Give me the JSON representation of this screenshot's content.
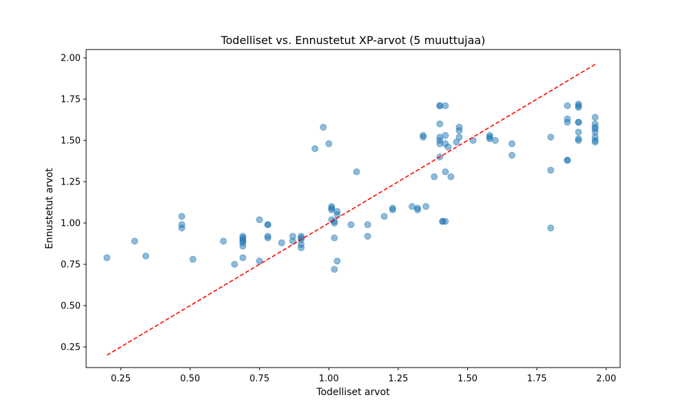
{
  "chart_data": {
    "type": "scatter",
    "title": "Todelliset vs. Ennustetut XP-arvot (5 muuttujaa)",
    "xlabel": "Todelliset arvot",
    "ylabel": "Ennustetut arvot",
    "xlim": [
      0.125,
      2.05
    ],
    "ylim": [
      0.125,
      2.05
    ],
    "x_ticks": [
      "0.25",
      "0.50",
      "0.75",
      "1.00",
      "1.25",
      "1.50",
      "1.75",
      "2.00"
    ],
    "y_ticks": [
      "0.25",
      "0.50",
      "0.75",
      "1.00",
      "1.25",
      "1.50",
      "1.75",
      "2.00"
    ],
    "grid": false,
    "colors": {
      "points": "#1f77b4",
      "reference_line": "#ff0000"
    },
    "reference_line": {
      "style": "dashed",
      "from": [
        0.2,
        0.2
      ],
      "to": [
        1.96,
        1.96
      ]
    },
    "points": [
      [
        0.2,
        0.79
      ],
      [
        0.3,
        0.89
      ],
      [
        0.34,
        0.8
      ],
      [
        0.47,
        1.04
      ],
      [
        0.47,
        0.99
      ],
      [
        0.47,
        0.97
      ],
      [
        0.51,
        0.78
      ],
      [
        0.62,
        0.89
      ],
      [
        0.66,
        0.75
      ],
      [
        0.69,
        0.92
      ],
      [
        0.69,
        0.91
      ],
      [
        0.69,
        0.9
      ],
      [
        0.69,
        0.89
      ],
      [
        0.69,
        0.88
      ],
      [
        0.69,
        0.86
      ],
      [
        0.69,
        0.79
      ],
      [
        0.75,
        1.02
      ],
      [
        0.75,
        0.77
      ],
      [
        0.78,
        0.99
      ],
      [
        0.78,
        0.99
      ],
      [
        0.78,
        0.92
      ],
      [
        0.78,
        0.91
      ],
      [
        0.83,
        0.88
      ],
      [
        0.87,
        0.92
      ],
      [
        0.87,
        0.89
      ],
      [
        0.9,
        0.92
      ],
      [
        0.9,
        0.91
      ],
      [
        0.9,
        0.9
      ],
      [
        0.9,
        0.87
      ],
      [
        0.9,
        0.85
      ],
      [
        0.95,
        1.45
      ],
      [
        0.98,
        1.58
      ],
      [
        1.0,
        1.48
      ],
      [
        1.01,
        1.1
      ],
      [
        1.01,
        1.09
      ],
      [
        1.01,
        1.08
      ],
      [
        1.01,
        1.02
      ],
      [
        1.02,
        1.01
      ],
      [
        1.02,
        1.0
      ],
      [
        1.02,
        0.91
      ],
      [
        1.02,
        0.72
      ],
      [
        1.03,
        1.07
      ],
      [
        1.03,
        1.05
      ],
      [
        1.03,
        0.77
      ],
      [
        1.08,
        0.99
      ],
      [
        1.1,
        1.31
      ],
      [
        1.14,
        0.99
      ],
      [
        1.14,
        0.92
      ],
      [
        1.2,
        1.04
      ],
      [
        1.23,
        1.09
      ],
      [
        1.23,
        1.08
      ],
      [
        1.3,
        1.1
      ],
      [
        1.32,
        1.09
      ],
      [
        1.32,
        1.08
      ],
      [
        1.34,
        1.53
      ],
      [
        1.34,
        1.52
      ],
      [
        1.35,
        1.1
      ],
      [
        1.38,
        1.28
      ],
      [
        1.4,
        1.71
      ],
      [
        1.4,
        1.71
      ],
      [
        1.4,
        1.6
      ],
      [
        1.4,
        1.52
      ],
      [
        1.4,
        1.5
      ],
      [
        1.4,
        1.48
      ],
      [
        1.4,
        1.4
      ],
      [
        1.41,
        1.01
      ],
      [
        1.41,
        1.01
      ],
      [
        1.42,
        1.71
      ],
      [
        1.42,
        1.53
      ],
      [
        1.42,
        1.48
      ],
      [
        1.42,
        1.31
      ],
      [
        1.42,
        1.01
      ],
      [
        1.43,
        1.46
      ],
      [
        1.44,
        1.28
      ],
      [
        1.46,
        1.49
      ],
      [
        1.47,
        1.58
      ],
      [
        1.47,
        1.56
      ],
      [
        1.47,
        1.52
      ],
      [
        1.52,
        1.5
      ],
      [
        1.58,
        1.53
      ],
      [
        1.58,
        1.52
      ],
      [
        1.58,
        1.51
      ],
      [
        1.6,
        1.5
      ],
      [
        1.66,
        1.48
      ],
      [
        1.66,
        1.41
      ],
      [
        1.8,
        1.52
      ],
      [
        1.8,
        1.32
      ],
      [
        1.8,
        0.97
      ],
      [
        1.86,
        1.71
      ],
      [
        1.86,
        1.63
      ],
      [
        1.86,
        1.61
      ],
      [
        1.86,
        1.38
      ],
      [
        1.86,
        1.38
      ],
      [
        1.9,
        1.72
      ],
      [
        1.9,
        1.71
      ],
      [
        1.9,
        1.7
      ],
      [
        1.9,
        1.61
      ],
      [
        1.9,
        1.61
      ],
      [
        1.9,
        1.55
      ],
      [
        1.9,
        1.51
      ],
      [
        1.9,
        1.5
      ],
      [
        1.96,
        1.64
      ],
      [
        1.96,
        1.6
      ],
      [
        1.96,
        1.58
      ],
      [
        1.96,
        1.57
      ],
      [
        1.96,
        1.55
      ],
      [
        1.96,
        1.52
      ],
      [
        1.96,
        1.5
      ],
      [
        1.96,
        1.49
      ]
    ]
  }
}
